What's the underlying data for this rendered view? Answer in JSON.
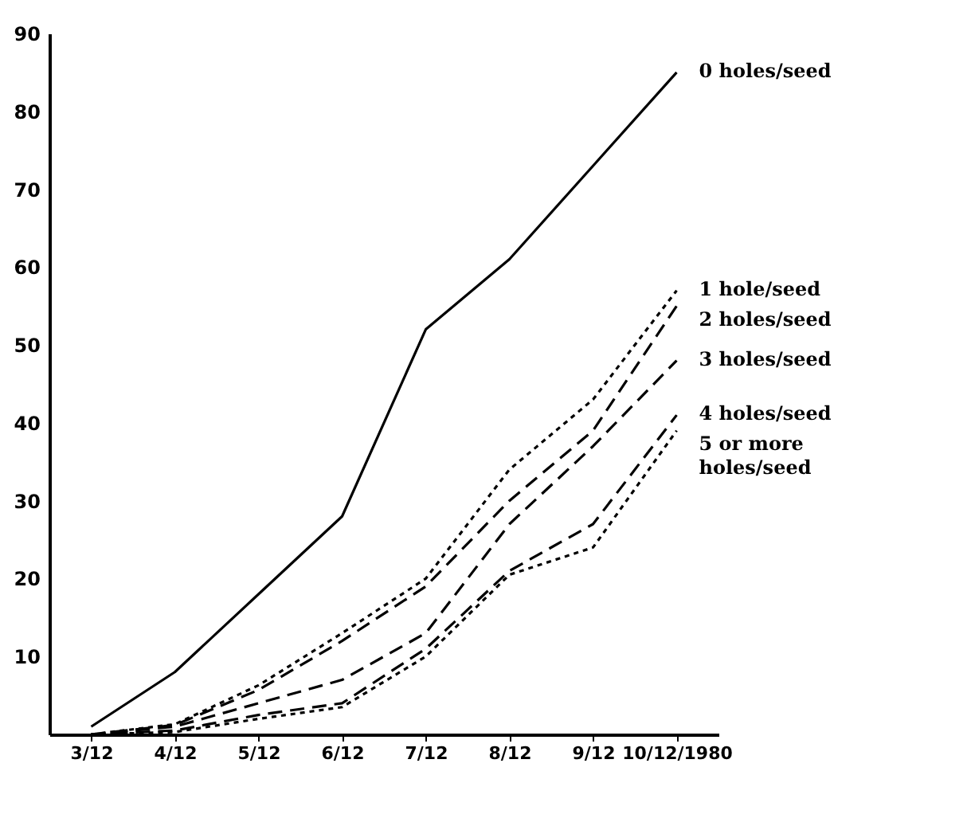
{
  "chart_data": {
    "type": "line",
    "categories": [
      "3/12",
      "4/12",
      "5/12",
      "6/12",
      "7/12",
      "8/12",
      "9/12",
      "10/12/1980"
    ],
    "ylim": [
      0,
      90
    ],
    "yticks": [
      10,
      20,
      30,
      40,
      50,
      60,
      70,
      80,
      90
    ],
    "grid": false,
    "legend": false,
    "marker": "none",
    "series": [
      {
        "name": "0 holes/seed",
        "color": "#000000",
        "line_style": "solid",
        "values": [
          1,
          8,
          18,
          28,
          52,
          61,
          73,
          85
        ]
      },
      {
        "name": "1 hole/seed",
        "color": "#000000",
        "line_style": "dotted",
        "values": [
          0,
          1.3,
          6.3,
          13,
          20,
          34,
          43,
          57
        ]
      },
      {
        "name": "2 holes/seed",
        "color": "#000000",
        "line_style": "dashed",
        "values": [
          0,
          1.2,
          5.7,
          12,
          19,
          30,
          39,
          55
        ]
      },
      {
        "name": "3 holes/seed",
        "color": "#000000",
        "line_style": "dashed",
        "values": [
          0,
          1,
          4,
          7,
          13,
          27,
          37,
          48
        ]
      },
      {
        "name": "4 holes/seed",
        "color": "#000000",
        "line_style": "dashed",
        "values": [
          0,
          0.5,
          2.5,
          4,
          11,
          21,
          27,
          41
        ]
      },
      {
        "name": "5 or more holes/seed",
        "color": "#000000",
        "line_style": "dotted",
        "values": [
          0,
          0.3,
          2,
          3.5,
          10,
          20.5,
          24,
          39
        ]
      }
    ]
  }
}
